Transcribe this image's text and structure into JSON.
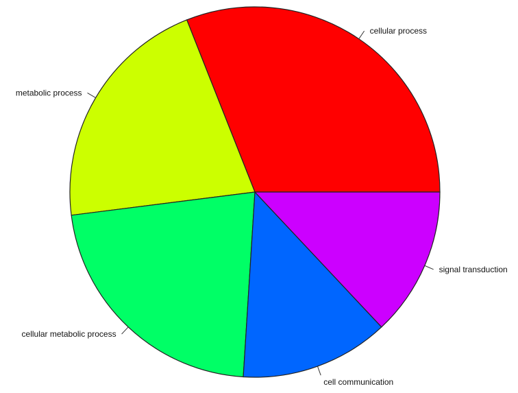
{
  "chart_data": {
    "type": "pie",
    "title": "",
    "start_angle_deg": 0,
    "direction": "counterclockwise",
    "slices": [
      {
        "label": "cellular process",
        "value": 31,
        "color": "#ff0000"
      },
      {
        "label": "metabolic process",
        "value": 21,
        "color": "#ccff00"
      },
      {
        "label": "cellular metabolic process",
        "value": 22,
        "color": "#00ff66"
      },
      {
        "label": "cell communication",
        "value": 13,
        "color": "#0066ff"
      },
      {
        "label": "signal transduction",
        "value": 13,
        "color": "#cc00ff"
      }
    ]
  }
}
